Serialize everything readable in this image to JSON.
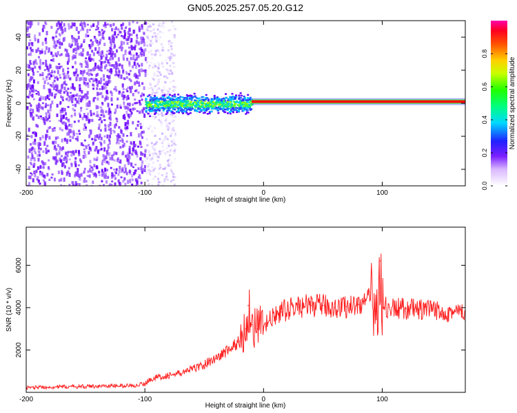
{
  "title": "GN05.2025.257.05.20.G12",
  "chart_data": [
    {
      "type": "heatmap",
      "xlabel": "Height of straight line (km)",
      "ylabel": "Frequency (Hz)",
      "xlim": [
        -200,
        170
      ],
      "ylim": [
        -50,
        50
      ],
      "x_ticks": [
        -200,
        -100,
        0,
        100
      ],
      "x_tick_labels": [
        "-200",
        "-100",
        "0",
        "100"
      ],
      "y_ticks": [
        -40,
        -20,
        0,
        20,
        40
      ],
      "y_tick_labels": [
        "-40",
        "-20",
        "0",
        "20",
        "40"
      ],
      "colorbar": {
        "label": "Normalized spectral amplitude",
        "range": [
          0,
          1
        ],
        "ticks": [
          0.0,
          0.2,
          0.4,
          0.6,
          0.8
        ],
        "tick_labels": [
          "0.0",
          "0.2",
          "0.4",
          "0.6",
          "0.8"
        ]
      },
      "features": [
        {
          "x_range": [
            -200,
            -100
          ],
          "freq_range": [
            -50,
            50
          ],
          "amplitude": 0.15,
          "kind": "noise"
        },
        {
          "x_range": [
            -100,
            -10
          ],
          "freq_range": [
            -8,
            8
          ],
          "amplitude": 0.4,
          "kind": "wide band"
        },
        {
          "x_range": [
            -10,
            170
          ],
          "freq": 1,
          "amplitude": 1.0,
          "kind": "carrier line"
        }
      ]
    },
    {
      "type": "line",
      "xlabel": "Height of straight line (km)",
      "ylabel": "SNR (10 * v/v)",
      "xlim": [
        -200,
        170
      ],
      "ylim": [
        0,
        7800
      ],
      "x_ticks": [
        -200,
        -100,
        0,
        100
      ],
      "x_tick_labels": [
        "-200",
        "-100",
        "0",
        "100"
      ],
      "y_ticks": [
        2000,
        4000,
        6000
      ],
      "y_tick_labels": [
        "2000",
        "4000",
        "6000"
      ],
      "series": [
        {
          "name": "SNR",
          "color": "#ff2020",
          "x": [
            -200,
            -190,
            -180,
            -170,
            -160,
            -150,
            -140,
            -130,
            -120,
            -110,
            -100,
            -95,
            -90,
            -85,
            -80,
            -75,
            -70,
            -65,
            -60,
            -55,
            -50,
            -45,
            -40,
            -35,
            -30,
            -25,
            -20,
            -15,
            -13,
            -10,
            -5,
            0,
            5,
            10,
            15,
            20,
            25,
            30,
            40,
            50,
            60,
            70,
            80,
            85,
            90,
            95,
            98,
            100,
            102,
            105,
            110,
            120,
            130,
            140,
            150,
            160,
            170
          ],
          "y": [
            230,
            240,
            250,
            260,
            270,
            280,
            290,
            300,
            310,
            320,
            400,
            650,
            700,
            750,
            800,
            850,
            900,
            1000,
            1100,
            1200,
            1300,
            1500,
            1600,
            1800,
            2000,
            2200,
            2400,
            3000,
            4100,
            3200,
            3000,
            3100,
            3400,
            3600,
            3800,
            3900,
            4000,
            4050,
            4100,
            4100,
            4000,
            4050,
            4150,
            4300,
            4400,
            3800,
            6200,
            4000,
            4000,
            4000,
            3950,
            3950,
            3900,
            3850,
            3850,
            3800,
            3750
          ]
        }
      ]
    }
  ]
}
